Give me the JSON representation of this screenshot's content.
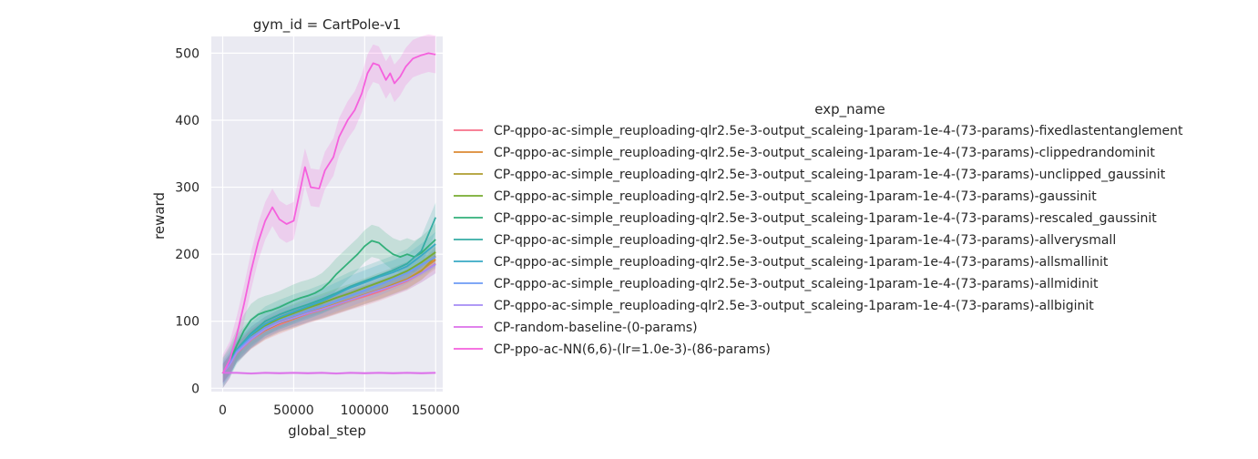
{
  "chart_data": {
    "type": "line",
    "title": "gym_id = CartPole-v1",
    "xlabel": "global_step",
    "ylabel": "reward",
    "xlim": [
      -8000,
      155000
    ],
    "ylim": [
      -5,
      525
    ],
    "xticks": [
      0,
      50000,
      100000,
      150000
    ],
    "xtick_labels": [
      "0",
      "50000",
      "100000",
      "150000"
    ],
    "yticks": [
      0,
      100,
      200,
      300,
      400,
      500
    ],
    "ytick_labels": [
      "0",
      "100",
      "200",
      "300",
      "400",
      "500"
    ],
    "grid": true,
    "legend_title": "exp_name",
    "legend_position": "right",
    "series": [
      {
        "name": "CP-qppo-ac-simple_reuploading-qlr2.5e-3-output_scaleing-1param-1e-4-(73-params)-fixedlastentanglement",
        "color": "#f77189",
        "band": 14,
        "points": [
          [
            0,
            22
          ],
          [
            5000,
            35
          ],
          [
            10000,
            52
          ],
          [
            20000,
            72
          ],
          [
            30000,
            86
          ],
          [
            40000,
            95
          ],
          [
            50000,
            103
          ],
          [
            60000,
            111
          ],
          [
            70000,
            117
          ],
          [
            80000,
            124
          ],
          [
            90000,
            131
          ],
          [
            100000,
            137
          ],
          [
            110000,
            144
          ],
          [
            120000,
            152
          ],
          [
            130000,
            160
          ],
          [
            140000,
            172
          ],
          [
            150000,
            186
          ]
        ]
      },
      {
        "name": "CP-qppo-ac-simple_reuploading-qlr2.5e-3-output_scaleing-1param-1e-4-(73-params)-clippedrandominit",
        "color": "#dc8932",
        "band": 14,
        "points": [
          [
            0,
            22
          ],
          [
            5000,
            36
          ],
          [
            10000,
            54
          ],
          [
            20000,
            74
          ],
          [
            30000,
            89
          ],
          [
            40000,
            99
          ],
          [
            50000,
            106
          ],
          [
            60000,
            113
          ],
          [
            70000,
            119
          ],
          [
            80000,
            126
          ],
          [
            90000,
            133
          ],
          [
            100000,
            140
          ],
          [
            110000,
            147
          ],
          [
            120000,
            155
          ],
          [
            130000,
            163
          ],
          [
            140000,
            176
          ],
          [
            150000,
            192
          ]
        ]
      },
      {
        "name": "CP-qppo-ac-simple_reuploading-qlr2.5e-3-output_scaleing-1param-1e-4-(73-params)-unclipped_gaussinit",
        "color": "#ae9d31",
        "band": 14,
        "points": [
          [
            0,
            22
          ],
          [
            5000,
            35
          ],
          [
            10000,
            53
          ],
          [
            20000,
            73
          ],
          [
            30000,
            87
          ],
          [
            40000,
            97
          ],
          [
            50000,
            104
          ],
          [
            60000,
            112
          ],
          [
            70000,
            118
          ],
          [
            80000,
            125
          ],
          [
            90000,
            132
          ],
          [
            100000,
            139
          ],
          [
            110000,
            146
          ],
          [
            120000,
            154
          ],
          [
            130000,
            162
          ],
          [
            140000,
            175
          ],
          [
            150000,
            197
          ]
        ]
      },
      {
        "name": "CP-qppo-ac-simple_reuploading-qlr2.5e-3-output_scaleing-1param-1e-4-(73-params)-gaussinit",
        "color": "#77ab31",
        "band": 14,
        "points": [
          [
            0,
            22
          ],
          [
            5000,
            37
          ],
          [
            10000,
            56
          ],
          [
            20000,
            78
          ],
          [
            30000,
            93
          ],
          [
            40000,
            104
          ],
          [
            50000,
            112
          ],
          [
            60000,
            120
          ],
          [
            70000,
            127
          ],
          [
            80000,
            135
          ],
          [
            90000,
            142
          ],
          [
            100000,
            150
          ],
          [
            110000,
            158
          ],
          [
            120000,
            166
          ],
          [
            130000,
            175
          ],
          [
            140000,
            188
          ],
          [
            150000,
            203
          ]
        ]
      },
      {
        "name": "CP-qppo-ac-simple_reuploading-qlr2.5e-3-output_scaleing-1param-1e-4-(73-params)-rescaled_gaussinit",
        "color": "#33b07a",
        "band": 24,
        "points": [
          [
            0,
            22
          ],
          [
            5000,
            40
          ],
          [
            10000,
            64
          ],
          [
            15000,
            86
          ],
          [
            20000,
            102
          ],
          [
            25000,
            110
          ],
          [
            30000,
            114
          ],
          [
            35000,
            117
          ],
          [
            40000,
            121
          ],
          [
            45000,
            126
          ],
          [
            50000,
            131
          ],
          [
            55000,
            135
          ],
          [
            60000,
            138
          ],
          [
            65000,
            142
          ],
          [
            70000,
            148
          ],
          [
            75000,
            158
          ],
          [
            80000,
            170
          ],
          [
            85000,
            180
          ],
          [
            90000,
            190
          ],
          [
            95000,
            200
          ],
          [
            100000,
            212
          ],
          [
            105000,
            220
          ],
          [
            110000,
            217
          ],
          [
            115000,
            208
          ],
          [
            120000,
            200
          ],
          [
            125000,
            196
          ],
          [
            130000,
            200
          ],
          [
            135000,
            196
          ],
          [
            140000,
            202
          ],
          [
            145000,
            212
          ],
          [
            150000,
            222
          ]
        ]
      },
      {
        "name": "CP-qppo-ac-simple_reuploading-qlr2.5e-3-output_scaleing-1param-1e-4-(73-params)-allverysmall",
        "color": "#36ada4",
        "band": 22,
        "points": [
          [
            0,
            22
          ],
          [
            5000,
            38
          ],
          [
            10000,
            58
          ],
          [
            20000,
            82
          ],
          [
            30000,
            100
          ],
          [
            40000,
            110
          ],
          [
            50000,
            118
          ],
          [
            60000,
            125
          ],
          [
            70000,
            133
          ],
          [
            80000,
            142
          ],
          [
            90000,
            152
          ],
          [
            100000,
            160
          ],
          [
            110000,
            168
          ],
          [
            120000,
            176
          ],
          [
            130000,
            186
          ],
          [
            140000,
            205
          ],
          [
            145000,
            230
          ],
          [
            150000,
            255
          ]
        ]
      },
      {
        "name": "CP-qppo-ac-simple_reuploading-qlr2.5e-3-output_scaleing-1param-1e-4-(73-params)-allsmallinit",
        "color": "#38a9c5",
        "band": 18,
        "points": [
          [
            0,
            22
          ],
          [
            5000,
            37
          ],
          [
            10000,
            57
          ],
          [
            20000,
            80
          ],
          [
            30000,
            96
          ],
          [
            40000,
            106
          ],
          [
            50000,
            114
          ],
          [
            60000,
            122
          ],
          [
            70000,
            130
          ],
          [
            80000,
            140
          ],
          [
            90000,
            150
          ],
          [
            100000,
            158
          ],
          [
            110000,
            166
          ],
          [
            120000,
            173
          ],
          [
            130000,
            182
          ],
          [
            140000,
            198
          ],
          [
            150000,
            215
          ]
        ]
      },
      {
        "name": "CP-qppo-ac-simple_reuploading-qlr2.5e-3-output_scaleing-1param-1e-4-(73-params)-allmidinit",
        "color": "#6e9bf4",
        "band": 16,
        "points": [
          [
            0,
            22
          ],
          [
            5000,
            36
          ],
          [
            10000,
            55
          ],
          [
            20000,
            76
          ],
          [
            30000,
            91
          ],
          [
            40000,
            101
          ],
          [
            50000,
            108
          ],
          [
            60000,
            115
          ],
          [
            70000,
            122
          ],
          [
            80000,
            130
          ],
          [
            90000,
            138
          ],
          [
            100000,
            146
          ],
          [
            110000,
            154
          ],
          [
            120000,
            163
          ],
          [
            130000,
            172
          ],
          [
            140000,
            184
          ],
          [
            150000,
            196
          ]
        ]
      },
      {
        "name": "CP-qppo-ac-simple_reuploading-qlr2.5e-3-output_scaleing-1param-1e-4-(73-params)-allbiginit",
        "color": "#a48cf4",
        "band": 14,
        "points": [
          [
            0,
            22
          ],
          [
            5000,
            35
          ],
          [
            10000,
            53
          ],
          [
            20000,
            73
          ],
          [
            30000,
            88
          ],
          [
            40000,
            98
          ],
          [
            50000,
            105
          ],
          [
            60000,
            112
          ],
          [
            70000,
            118
          ],
          [
            80000,
            125
          ],
          [
            90000,
            132
          ],
          [
            100000,
            139
          ],
          [
            110000,
            146
          ],
          [
            120000,
            153
          ],
          [
            130000,
            161
          ],
          [
            140000,
            172
          ],
          [
            150000,
            185
          ]
        ]
      },
      {
        "name": "CP-random-baseline-(0-params)",
        "color": "#dc70ea",
        "band": 2,
        "points": [
          [
            0,
            23
          ],
          [
            10000,
            23
          ],
          [
            20000,
            22
          ],
          [
            30000,
            23
          ],
          [
            40000,
            22.5
          ],
          [
            50000,
            23
          ],
          [
            60000,
            22.5
          ],
          [
            70000,
            23
          ],
          [
            80000,
            22
          ],
          [
            90000,
            23
          ],
          [
            100000,
            22.5
          ],
          [
            110000,
            23
          ],
          [
            120000,
            22.5
          ],
          [
            130000,
            23
          ],
          [
            140000,
            22.5
          ],
          [
            150000,
            23
          ]
        ]
      },
      {
        "name": "CP-ppo-ac-NN(6,6)-(lr=1.0e-3)-(86-params)",
        "color": "#f561dd",
        "band": 28,
        "points": [
          [
            0,
            22
          ],
          [
            5000,
            42
          ],
          [
            10000,
            80
          ],
          [
            15000,
            125
          ],
          [
            20000,
            175
          ],
          [
            25000,
            218
          ],
          [
            30000,
            250
          ],
          [
            35000,
            270
          ],
          [
            40000,
            252
          ],
          [
            45000,
            245
          ],
          [
            50000,
            250
          ],
          [
            55000,
            300
          ],
          [
            58000,
            330
          ],
          [
            62000,
            300
          ],
          [
            68000,
            298
          ],
          [
            72000,
            325
          ],
          [
            78000,
            345
          ],
          [
            82000,
            375
          ],
          [
            88000,
            400
          ],
          [
            93000,
            415
          ],
          [
            98000,
            440
          ],
          [
            102000,
            470
          ],
          [
            106000,
            485
          ],
          [
            110000,
            482
          ],
          [
            115000,
            460
          ],
          [
            118000,
            470
          ],
          [
            121000,
            455
          ],
          [
            125000,
            465
          ],
          [
            129000,
            480
          ],
          [
            134000,
            492
          ],
          [
            140000,
            497
          ],
          [
            145000,
            500
          ],
          [
            150000,
            498
          ]
        ]
      }
    ]
  }
}
